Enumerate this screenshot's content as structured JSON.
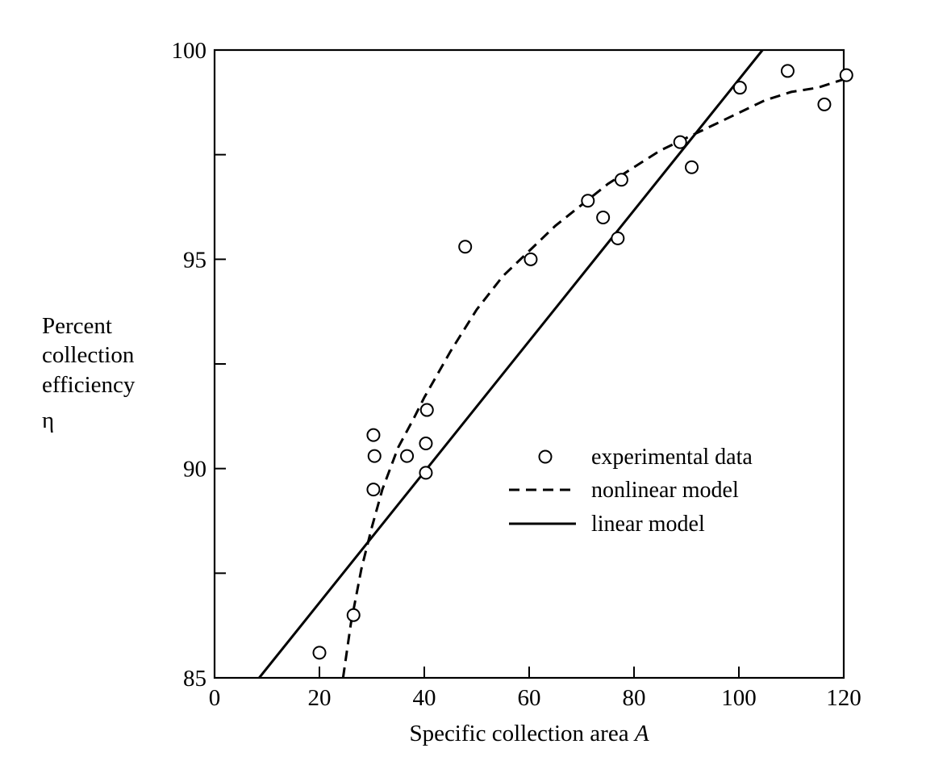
{
  "chart_data": {
    "type": "scatter",
    "xlabel": "Specific collection area ",
    "xlabel_var": "A",
    "ylabel_lines": [
      "Percent",
      "collection",
      "efficiency",
      "η"
    ],
    "xlim": [
      0,
      120
    ],
    "ylim": [
      85,
      100
    ],
    "x_ticks": [
      0,
      20,
      40,
      60,
      80,
      100,
      120
    ],
    "y_ticks_labeled": [
      85,
      90,
      95,
      100
    ],
    "y_ticks_minor": [
      87.5,
      92.5,
      97.5
    ],
    "grid": false,
    "legend_position": "center-right",
    "series": [
      {
        "name": "experimental data",
        "kind": "scatter",
        "points": [
          [
            20,
            85.6
          ],
          [
            26.5,
            86.5
          ],
          [
            30.3,
            89.5
          ],
          [
            30.3,
            90.8
          ],
          [
            30.5,
            90.3
          ],
          [
            36.7,
            90.3
          ],
          [
            40.3,
            89.9
          ],
          [
            40.3,
            90.6
          ],
          [
            40.5,
            91.4
          ],
          [
            47.8,
            95.3
          ],
          [
            60.3,
            95.0
          ],
          [
            71.2,
            96.4
          ],
          [
            74.1,
            96.0
          ],
          [
            76.9,
            95.5
          ],
          [
            77.6,
            96.9
          ],
          [
            88.8,
            97.8
          ],
          [
            91.0,
            97.2
          ],
          [
            100.2,
            99.1
          ],
          [
            109.3,
            99.5
          ],
          [
            116.3,
            98.7
          ],
          [
            120.5,
            99.4
          ]
        ]
      },
      {
        "name": "nonlinear model",
        "kind": "dashed-line",
        "points": [
          [
            24.5,
            85.0
          ],
          [
            26,
            86.3
          ],
          [
            28,
            87.6
          ],
          [
            30,
            88.6
          ],
          [
            32,
            89.5
          ],
          [
            35,
            90.5
          ],
          [
            38,
            91.2
          ],
          [
            40,
            91.7
          ],
          [
            45,
            92.8
          ],
          [
            50,
            93.8
          ],
          [
            55,
            94.6
          ],
          [
            60,
            95.2
          ],
          [
            65,
            95.8
          ],
          [
            70,
            96.3
          ],
          [
            75,
            96.8
          ],
          [
            80,
            97.2
          ],
          [
            85,
            97.6
          ],
          [
            90,
            97.9
          ],
          [
            95,
            98.2
          ],
          [
            100,
            98.5
          ],
          [
            105,
            98.8
          ],
          [
            110,
            99.0
          ],
          [
            115,
            99.1
          ],
          [
            120,
            99.3
          ]
        ]
      },
      {
        "name": "linear model",
        "kind": "solid-line",
        "points": [
          [
            8.5,
            85.0
          ],
          [
            104.5,
            100.0
          ]
        ]
      }
    ]
  }
}
